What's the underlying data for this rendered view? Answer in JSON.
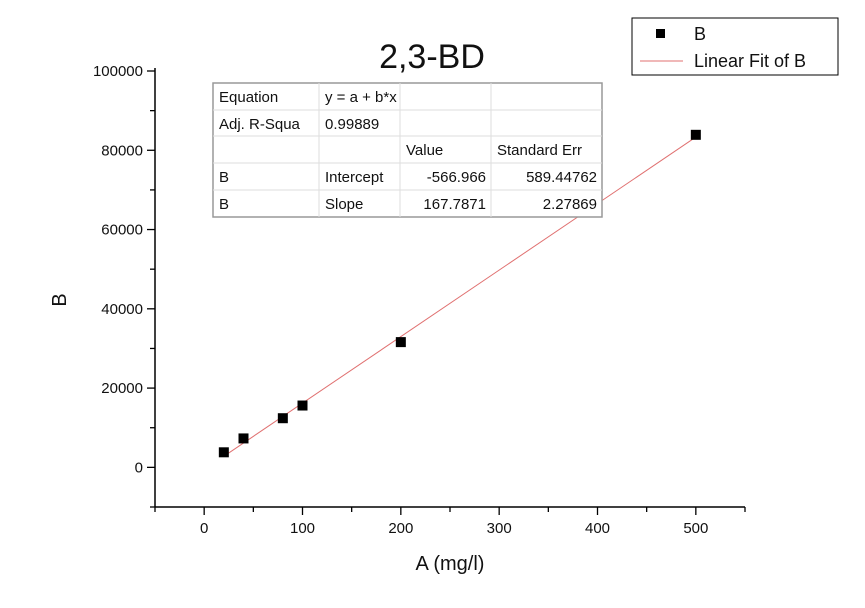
{
  "chart_data": {
    "type": "scatter",
    "title": "2,3-BD",
    "xlabel": "A (mg/l)",
    "ylabel": "B",
    "xlim": [
      -50,
      550
    ],
    "ylim": [
      -10000,
      100000
    ],
    "xticks": [
      0,
      100,
      200,
      300,
      400,
      500
    ],
    "xtick_labels": [
      "0",
      "100",
      "200",
      "300",
      "400",
      "500"
    ],
    "yticks": [
      0,
      20000,
      40000,
      60000,
      80000,
      100000
    ],
    "ytick_labels": [
      "0",
      "20000",
      "40000",
      "60000",
      "80000",
      "100000"
    ],
    "grid": false,
    "series": [
      {
        "name": "B",
        "kind": "scatter",
        "color": "#000000",
        "x": [
          20,
          40,
          80,
          100,
          200,
          500
        ],
        "y": [
          3800,
          7300,
          12400,
          15600,
          31600,
          83900
        ]
      },
      {
        "name": "Linear Fit of B",
        "kind": "line",
        "color": "#e07070",
        "intercept": -566.966,
        "slope": 167.7871,
        "x_range": [
          20,
          500
        ]
      }
    ],
    "legend": {
      "placement": "top-right",
      "entries": [
        "B",
        "Linear Fit of B"
      ]
    },
    "fit_table": {
      "rows": [
        [
          "Equation",
          "y = a + b*x",
          "",
          ""
        ],
        [
          "Adj. R-Squa",
          "0.99889",
          "",
          ""
        ],
        [
          "",
          "",
          "Value",
          "Standard Err"
        ],
        [
          "B",
          "Intercept",
          "-566.966",
          "589.44762"
        ],
        [
          "B",
          "Slope",
          "167.7871",
          "2.27869"
        ]
      ]
    }
  }
}
